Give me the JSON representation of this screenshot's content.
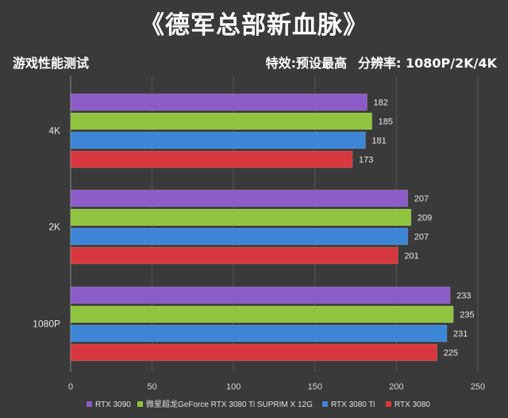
{
  "header": {
    "title": "《德军总部新血脉》",
    "left_label": "游戏性能测试",
    "settings_label": "特效:预设最高",
    "resolution_label": "分辨率: 1080P/2K/4K"
  },
  "chart_data": {
    "type": "bar",
    "orientation": "horizontal",
    "categories": [
      "4K",
      "2K",
      "1080P"
    ],
    "series": [
      {
        "name": "RTX 3090",
        "color": "#8b5cc7",
        "values": [
          182,
          207,
          233
        ]
      },
      {
        "name": "微星超龙GeForce RTX 3080 Ti SUPRIM X 12G",
        "color": "#8fc43f",
        "values": [
          185,
          209,
          235
        ]
      },
      {
        "name": "RTX 3080 Ti",
        "color": "#3d86d6",
        "values": [
          181,
          207,
          231
        ]
      },
      {
        "name": "RTX 3080",
        "color": "#d7373e",
        "values": [
          173,
          201,
          225
        ]
      }
    ],
    "xlim": [
      0,
      250
    ],
    "xticks": [
      0,
      50,
      100,
      150,
      200,
      250
    ],
    "grid": true,
    "legend_position": "bottom"
  }
}
